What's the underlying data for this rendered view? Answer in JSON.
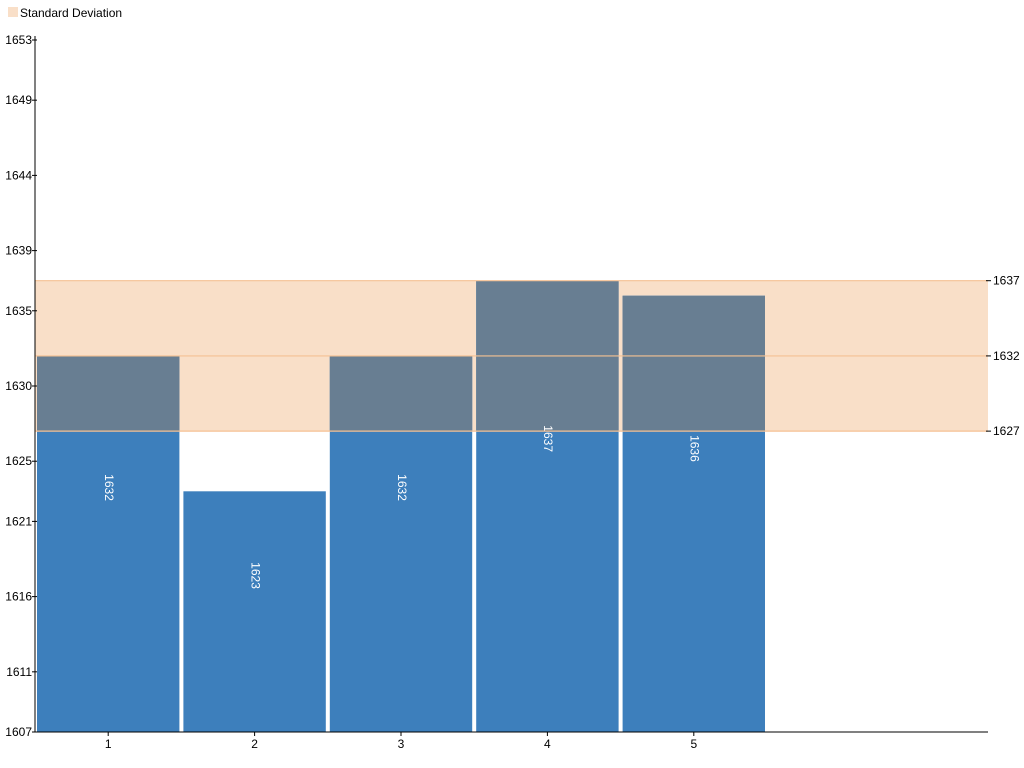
{
  "legend": {
    "label": "Standard Deviation",
    "color": "#f9dfc8"
  },
  "chart_data": {
    "type": "bar",
    "categories": [
      "1",
      "2",
      "3",
      "4",
      "5"
    ],
    "values": [
      1632,
      1623,
      1632,
      1637,
      1636
    ],
    "ylim": [
      1607,
      1653
    ],
    "y_ticks": [
      1607,
      1611,
      1616,
      1621,
      1625,
      1630,
      1635,
      1639,
      1644,
      1649,
      1653
    ],
    "band": {
      "name": "Standard Deviation",
      "mean": 1632,
      "low": 1627,
      "high": 1637
    },
    "right_tick_labels": [
      1637,
      1632,
      1627
    ],
    "grid": false,
    "legend_position": "top-left",
    "colors": {
      "bar": "#3d7fbc",
      "bar_overlap": "#687e92",
      "band_fill": "#f9dfc8",
      "band_line": "#f5c193"
    }
  }
}
